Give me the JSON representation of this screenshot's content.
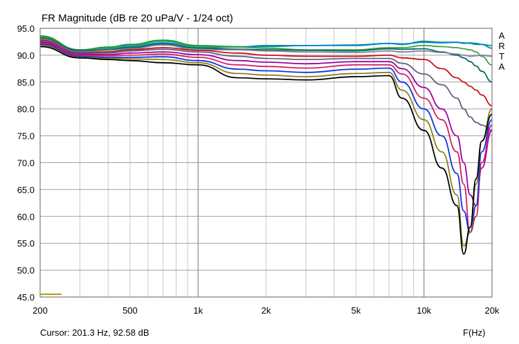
{
  "chart_data": {
    "type": "line",
    "title": "FR Magnitude (dB re 20 uPa/V - 1/24 oct)",
    "xlabel": "F(Hz)",
    "ylabel": "",
    "x_scale": "log",
    "xlim": [
      200,
      20000
    ],
    "ylim": [
      45,
      95
    ],
    "grid": true,
    "y_ticks": [
      "95.0",
      "90.0",
      "85.0",
      "80.0",
      "75.0",
      "70.0",
      "65.0",
      "60.0",
      "55.0",
      "50.0",
      "45.0"
    ],
    "x_tick_labels": [
      {
        "value": 200,
        "label": "200"
      },
      {
        "value": 500,
        "label": "500"
      },
      {
        "value": 1000,
        "label": "1k"
      },
      {
        "value": 2000,
        "label": "2k"
      },
      {
        "value": 5000,
        "label": "5k"
      },
      {
        "value": 10000,
        "label": "10k"
      },
      {
        "value": 20000,
        "label": "20k"
      }
    ],
    "brand": [
      "A",
      "R",
      "T",
      "A"
    ],
    "cursor_text": "Cursor: 201.3 Hz, 92.58 dB",
    "x": [
      200,
      300,
      400,
      500,
      700,
      1000,
      1500,
      2000,
      3000,
      5000,
      7000,
      8000,
      10000,
      12000,
      14000,
      15000,
      16000,
      17000,
      18000,
      20000
    ],
    "series": [
      {
        "color": "#00a050",
        "values": [
          93.6,
          91.0,
          91.5,
          92.0,
          92.8,
          91.8,
          91.6,
          91.6,
          91.8,
          91.8,
          92.2,
          92.0,
          92.6,
          92.4,
          92.4,
          92.3,
          92.2,
          92.0,
          92.0,
          91.8
        ]
      },
      {
        "color": "#0080e0",
        "values": [
          93.0,
          90.8,
          91.2,
          91.6,
          92.3,
          91.4,
          91.5,
          91.8,
          91.8,
          91.9,
          92.2,
          92.1,
          92.4,
          92.3,
          92.4,
          92.2,
          92.3,
          92.2,
          92.0,
          91.3
        ]
      },
      {
        "color": "#40a040",
        "values": [
          93.4,
          91.0,
          91.3,
          91.8,
          92.6,
          91.6,
          91.5,
          91.3,
          91.0,
          91.0,
          91.4,
          91.4,
          91.8,
          91.6,
          91.4,
          91.2,
          91.0,
          90.6,
          89.8,
          88.2
        ]
      },
      {
        "color": "#006a60",
        "values": [
          93.2,
          90.9,
          91.0,
          91.4,
          92.1,
          91.3,
          91.1,
          91.0,
          90.9,
          90.8,
          91.2,
          91.1,
          91.2,
          90.6,
          90.0,
          89.5,
          88.8,
          88.0,
          87.0,
          85.0
        ]
      },
      {
        "color": "#8080a0",
        "values": [
          93.0,
          90.6,
          90.9,
          91.2,
          91.9,
          91.0,
          91.0,
          90.8,
          90.6,
          90.5,
          90.8,
          90.6,
          90.8,
          90.5,
          90.2,
          90.0,
          89.8,
          89.9,
          90.0,
          89.8
        ]
      },
      {
        "color": "#cc1010",
        "values": [
          92.8,
          90.5,
          90.6,
          91.0,
          91.4,
          90.9,
          90.4,
          90.0,
          89.8,
          89.8,
          90.0,
          89.5,
          89.2,
          87.5,
          85.8,
          85.0,
          84.2,
          83.5,
          82.6,
          80.6
        ]
      },
      {
        "color": "#606080",
        "values": [
          92.6,
          90.4,
          90.4,
          90.8,
          91.1,
          90.6,
          89.8,
          89.4,
          89.2,
          89.4,
          89.4,
          88.5,
          86.5,
          84.5,
          82.0,
          80.0,
          78.5,
          77.5,
          77.0,
          76.0
        ]
      },
      {
        "color": "#a000a0",
        "values": [
          92.4,
          90.2,
          90.1,
          90.4,
          90.6,
          90.1,
          89.0,
          88.7,
          88.4,
          88.8,
          88.8,
          87.5,
          84.0,
          80.0,
          75.0,
          70.0,
          64.0,
          62.0,
          69.0,
          76.0
        ]
      },
      {
        "color": "#d02060",
        "values": [
          92.2,
          90.0,
          89.9,
          90.0,
          90.2,
          89.6,
          88.2,
          87.9,
          87.6,
          88.2,
          88.2,
          86.5,
          82.0,
          78.0,
          72.0,
          66.0,
          57.0,
          60.0,
          70.0,
          77.0
        ]
      },
      {
        "color": "#1030e0",
        "values": [
          92.0,
          89.8,
          89.6,
          89.6,
          89.7,
          89.0,
          87.4,
          87.1,
          86.8,
          87.4,
          87.6,
          85.0,
          80.0,
          75.0,
          68.0,
          61.0,
          57.0,
          62.0,
          72.0,
          78.0
        ]
      },
      {
        "color": "#8a8020",
        "values": [
          91.8,
          89.6,
          89.4,
          89.3,
          89.2,
          88.6,
          86.6,
          86.3,
          86.0,
          86.6,
          86.8,
          83.5,
          78.0,
          72.0,
          64.0,
          54.5,
          57.0,
          66.0,
          74.0,
          80.0
        ]
      },
      {
        "color": "#000000",
        "values": [
          91.6,
          89.5,
          89.2,
          89.0,
          88.6,
          88.2,
          85.8,
          85.6,
          85.4,
          86.0,
          86.2,
          82.0,
          76.0,
          69.0,
          62.0,
          53.0,
          58.0,
          67.0,
          74.0,
          79.0
        ]
      }
    ]
  }
}
